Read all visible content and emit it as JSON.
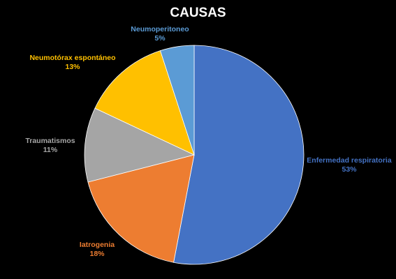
{
  "chart_data": {
    "type": "pie",
    "title": "CAUSAS",
    "slices": [
      {
        "label": "Enfermedad respiratoria",
        "value": 53,
        "value_label": "53%",
        "color": "#4472c4"
      },
      {
        "label": "Iatrogenia",
        "value": 18,
        "value_label": "18%",
        "color": "#ed7d31"
      },
      {
        "label": "Traumatismos",
        "value": 11,
        "value_label": "11%",
        "color": "#a5a5a5"
      },
      {
        "label": "Neumotórax espontáneo",
        "value": 13,
        "value_label": "13%",
        "color": "#ffc000"
      },
      {
        "label": "Neumoperitoneo",
        "value": 5,
        "value_label": "5%",
        "color": "#5b9bd5"
      }
    ],
    "start_angle": "12 o'clock",
    "direction": "clockwise",
    "legend": "none",
    "background_color": "#000000",
    "title_color": "#ffffff"
  }
}
